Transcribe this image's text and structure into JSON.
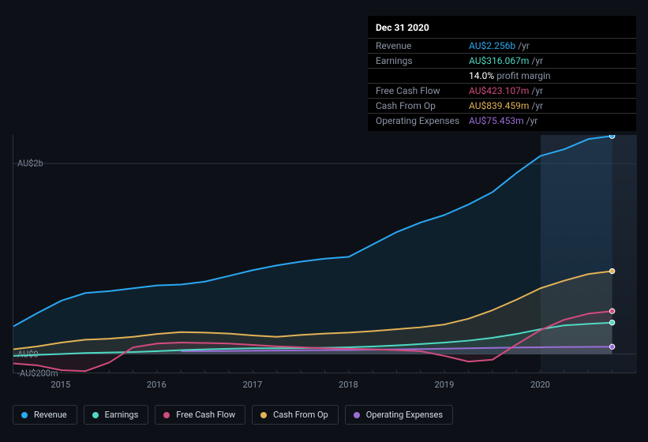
{
  "tooltip": {
    "header": "Dec 31 2020",
    "rows": [
      {
        "label": "Revenue",
        "value": "AU$2.256b",
        "unit": "/yr",
        "color": "#2aa8f2"
      },
      {
        "label": "Earnings",
        "value": "AU$316.067m",
        "unit": "/yr",
        "color": "#4fd9c4"
      },
      {
        "label": "",
        "value": "14.0%",
        "unit": "profit margin",
        "color": "#ffffff"
      },
      {
        "label": "Free Cash Flow",
        "value": "AU$423.107m",
        "unit": "/yr",
        "color": "#d24b7e"
      },
      {
        "label": "Cash From Op",
        "value": "AU$839.459m",
        "unit": "/yr",
        "color": "#e2b255"
      },
      {
        "label": "Operating Expenses",
        "value": "AU$75.453m",
        "unit": "/yr",
        "color": "#9b6dd7"
      }
    ]
  },
  "chart": {
    "background": "#0d1117",
    "grid_color": "#2c3440",
    "axis_color": "#2c3440",
    "label_color": "#8a94a6",
    "ylabels": [
      {
        "text": "AU$2b",
        "y": 2000
      },
      {
        "text": "AU$0",
        "y": 0
      },
      {
        "text": "-AU$200m",
        "y": -200
      }
    ],
    "ylim": [
      -200,
      2300
    ],
    "xlim": [
      0,
      26
    ],
    "xticks_major_at": [
      2,
      6,
      10,
      14,
      18,
      22
    ],
    "xlabels": [
      "2015",
      "2016",
      "2017",
      "2018",
      "2019",
      "2020"
    ],
    "highlight": {
      "from": 22,
      "to": 26
    },
    "highlight_color": "rgba(60,80,110,0.35)",
    "line_width": 2,
    "area_opacity": 0.1,
    "series": [
      {
        "name": "Revenue",
        "color": "#2aa8f2",
        "y": [
          290,
          430,
          560,
          640,
          660,
          690,
          720,
          730,
          760,
          820,
          880,
          930,
          970,
          1000,
          1020,
          1150,
          1280,
          1380,
          1460,
          1570,
          1700,
          1900,
          2080,
          2150,
          2256,
          2290
        ]
      },
      {
        "name": "Cash From Op",
        "color": "#e2b255",
        "y": [
          50,
          80,
          120,
          150,
          160,
          180,
          210,
          230,
          225,
          215,
          195,
          180,
          200,
          215,
          225,
          240,
          260,
          280,
          310,
          370,
          460,
          570,
          690,
          770,
          839,
          870
        ]
      },
      {
        "name": "Free Cash Flow",
        "color": "#d24b7e",
        "y": [
          -100,
          -120,
          -170,
          -180,
          -90,
          70,
          110,
          120,
          115,
          110,
          95,
          80,
          70,
          60,
          55,
          50,
          40,
          30,
          -20,
          -80,
          -60,
          100,
          250,
          360,
          423,
          450
        ]
      },
      {
        "name": "Earnings",
        "color": "#4fd9c4",
        "y": [
          -20,
          -10,
          0,
          10,
          15,
          20,
          30,
          40,
          48,
          55,
          60,
          60,
          62,
          65,
          70,
          78,
          90,
          105,
          120,
          140,
          170,
          210,
          260,
          300,
          316,
          330
        ]
      },
      {
        "name": "Operating Expenses",
        "color": "#9b6dd7",
        "y": [
          null,
          null,
          null,
          null,
          null,
          null,
          null,
          30,
          30,
          32,
          34,
          36,
          38,
          40,
          42,
          45,
          48,
          52,
          56,
          60,
          64,
          68,
          71,
          73,
          75,
          76
        ]
      }
    ],
    "legend": [
      {
        "label": "Revenue",
        "color": "#2aa8f2"
      },
      {
        "label": "Earnings",
        "color": "#4fd9c4"
      },
      {
        "label": "Free Cash Flow",
        "color": "#d24b7e"
      },
      {
        "label": "Cash From Op",
        "color": "#e2b255"
      },
      {
        "label": "Operating Expenses",
        "color": "#9b6dd7"
      }
    ]
  }
}
